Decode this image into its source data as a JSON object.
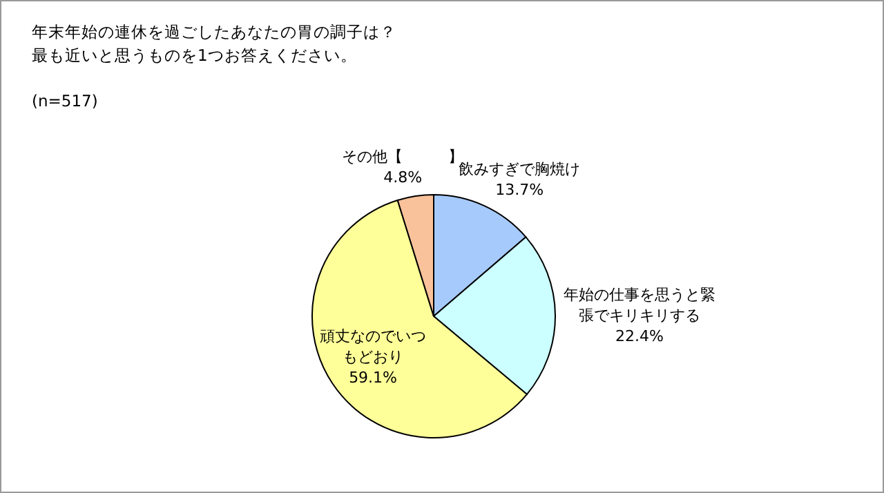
{
  "chart_data": {
    "type": "pie",
    "title": "年末年始の連休を過ごしたあなたの胃の調子は？",
    "subtitle": "最も近いと思うものを1つお答えください。",
    "annotations": [
      "(n=517)"
    ],
    "categories": [
      "飲みすぎで胸焼け",
      "年始の仕事を思うと緊張でキリキリする",
      "頑丈なのでいつもどおり",
      "その他【　　　】"
    ],
    "values": [
      13.7,
      22.4,
      59.1,
      4.8
    ],
    "value_labels": [
      "13.7%",
      "22.4%",
      "59.1%",
      "4.8%"
    ],
    "colors": [
      "#a6cafc",
      "#ccffff",
      "#ffff99",
      "#fac29a"
    ]
  }
}
